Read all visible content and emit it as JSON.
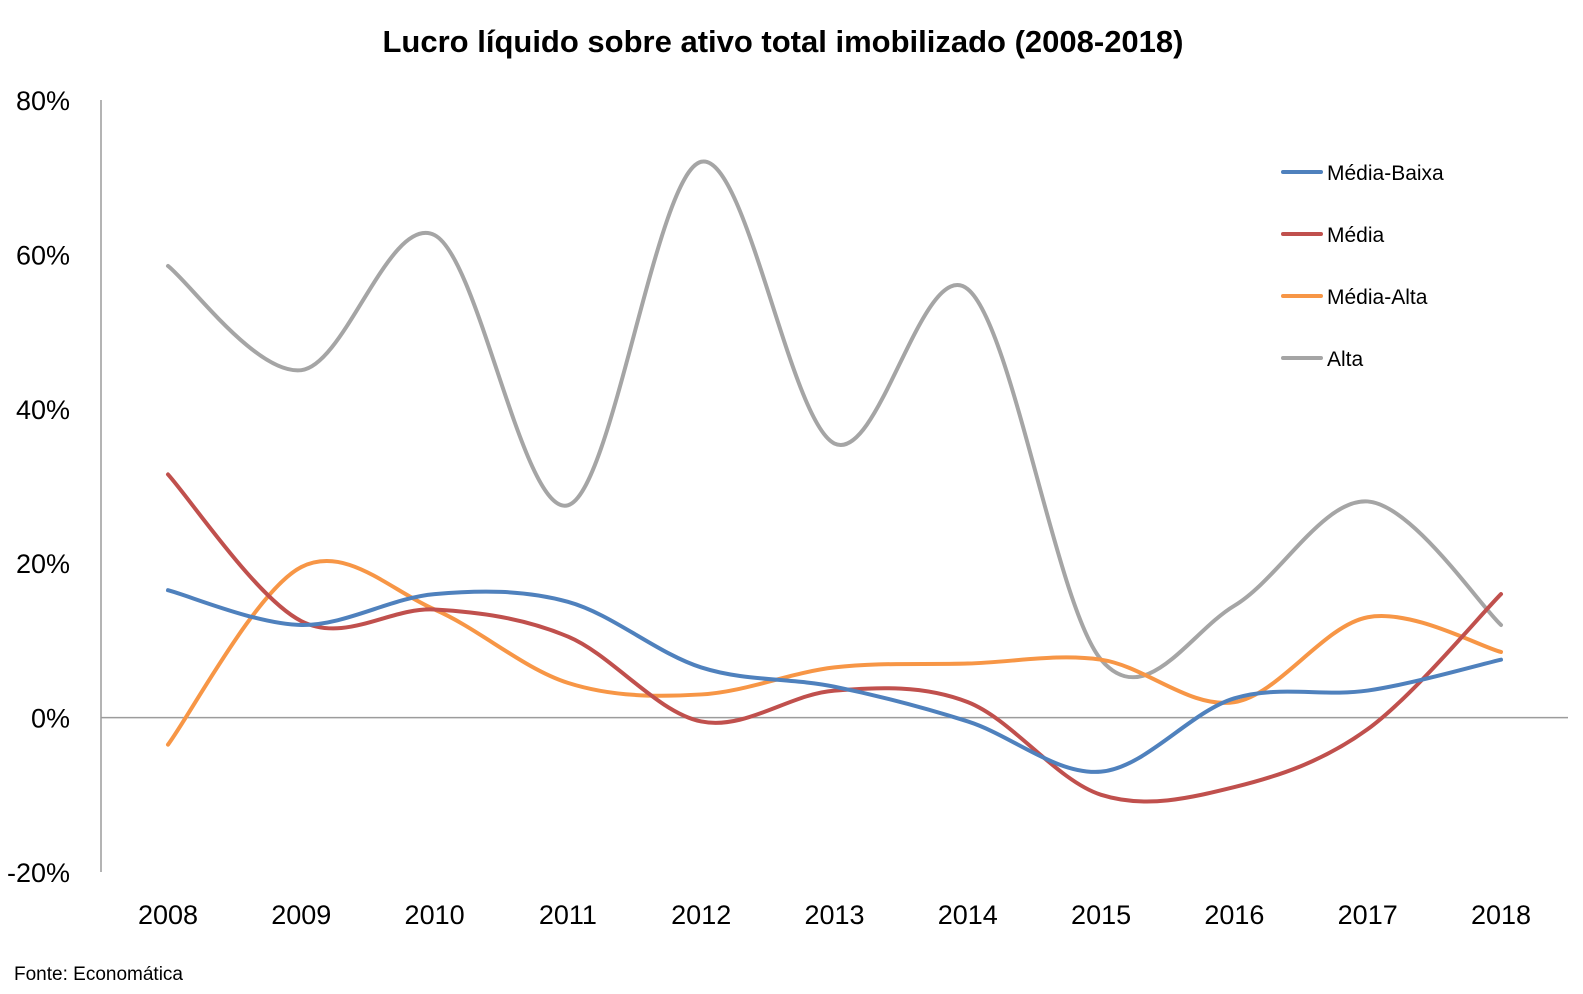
{
  "chart_data": {
    "type": "line",
    "title": "Lucro líquido sobre ativo total imobilizado (2008-2018)",
    "xlabel": "",
    "ylabel": "",
    "categories": [
      "2008",
      "2009",
      "2010",
      "2011",
      "2012",
      "2013",
      "2014",
      "2015",
      "2016",
      "2017",
      "2018"
    ],
    "ylim": [
      -20,
      80
    ],
    "yticks": [
      -20,
      0,
      20,
      40,
      60,
      80
    ],
    "ytick_labels": [
      "-20%",
      "0%",
      "20%",
      "40%",
      "60%",
      "80%"
    ],
    "grid": false,
    "smooth": true,
    "legend_position": "top-right",
    "series": [
      {
        "name": "Média-Baixa",
        "color": "#4F81BD",
        "values": [
          16.5,
          12,
          16,
          15,
          6.5,
          4,
          -0.5,
          -7,
          2.5,
          3.5,
          7.5
        ]
      },
      {
        "name": "Média",
        "color": "#C0504D",
        "values": [
          31.5,
          12.5,
          14,
          10.5,
          -0.5,
          3.5,
          2,
          -10,
          -9,
          -1.5,
          16
        ]
      },
      {
        "name": "Média-Alta",
        "color": "#F79646",
        "values": [
          -3.5,
          19.5,
          14,
          4.5,
          3,
          6.5,
          7,
          7.5,
          2,
          13,
          8.5
        ]
      },
      {
        "name": "Alta",
        "color": "#A5A5A5",
        "values": [
          58.5,
          45,
          62.5,
          27.5,
          72,
          35.5,
          55.5,
          7.5,
          14.5,
          28,
          12
        ]
      }
    ]
  },
  "footer": {
    "source": "Fonte: Economática"
  }
}
